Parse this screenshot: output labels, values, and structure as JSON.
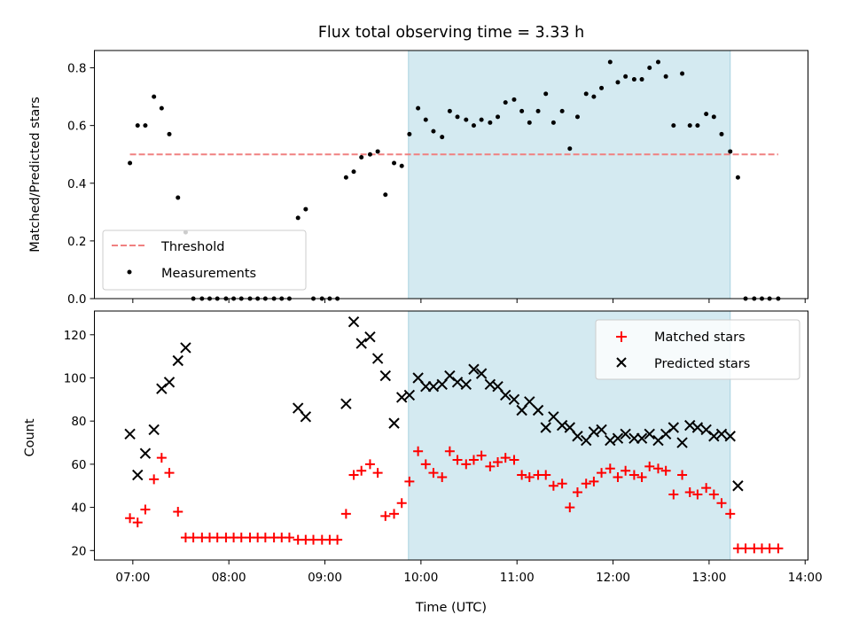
{
  "chart_data": {
    "title": "Flux total observing time = 3.33 h",
    "xlabel": "Time (UTC)",
    "x_units": "hours UTC",
    "x_ticks": [
      {
        "value": 7,
        "label": "07:00"
      },
      {
        "value": 8,
        "label": "08:00"
      },
      {
        "value": 9,
        "label": "09:00"
      },
      {
        "value": 10,
        "label": "10:00"
      },
      {
        "value": 11,
        "label": "11:00"
      },
      {
        "value": 12,
        "label": "12:00"
      },
      {
        "value": 13,
        "label": "13:00"
      },
      {
        "value": 14,
        "label": "14:00"
      }
    ],
    "xlim": [
      6.6,
      14.03
    ],
    "shaded_interval": [
      9.87,
      13.22
    ],
    "shade_color": "#d4eaf1",
    "panels": [
      {
        "type": "scatter",
        "ylabel": "Matched/Predicted stars",
        "ylim": [
          0,
          0.86
        ],
        "y_ticks": [
          {
            "value": 0.0,
            "label": "0.0"
          },
          {
            "value": 0.2,
            "label": "0.2"
          },
          {
            "value": 0.4,
            "label": "0.4"
          },
          {
            "value": 0.6,
            "label": "0.6"
          },
          {
            "value": 0.8,
            "label": "0.8"
          }
        ],
        "threshold": {
          "name": "Threshold",
          "value": 0.5,
          "x_range": [
            6.97,
            13.72
          ],
          "color": "#f08080"
        },
        "legend": {
          "placement": "lower-left",
          "entries": [
            "Threshold",
            "Measurements"
          ]
        },
        "series": [
          {
            "name": "Measurements",
            "marker": "dot",
            "color": "#000000",
            "points": [
              [
                6.97,
                0.47
              ],
              [
                7.05,
                0.6
              ],
              [
                7.13,
                0.6
              ],
              [
                7.22,
                0.7
              ],
              [
                7.3,
                0.66
              ],
              [
                7.38,
                0.57
              ],
              [
                7.47,
                0.35
              ],
              [
                7.55,
                0.23
              ],
              [
                7.63,
                0.0
              ],
              [
                7.72,
                0.0
              ],
              [
                7.8,
                0.0
              ],
              [
                7.88,
                0.0
              ],
              [
                7.97,
                0.0
              ],
              [
                8.05,
                0.0
              ],
              [
                8.13,
                0.0
              ],
              [
                8.22,
                0.0
              ],
              [
                8.3,
                0.0
              ],
              [
                8.38,
                0.0
              ],
              [
                8.47,
                0.0
              ],
              [
                8.55,
                0.0
              ],
              [
                8.63,
                0.0
              ],
              [
                8.72,
                0.28
              ],
              [
                8.8,
                0.31
              ],
              [
                8.88,
                0.0
              ],
              [
                8.97,
                0.0
              ],
              [
                9.05,
                0.0
              ],
              [
                9.13,
                0.0
              ],
              [
                9.22,
                0.42
              ],
              [
                9.3,
                0.44
              ],
              [
                9.38,
                0.49
              ],
              [
                9.47,
                0.5
              ],
              [
                9.55,
                0.51
              ],
              [
                9.63,
                0.36
              ],
              [
                9.72,
                0.47
              ],
              [
                9.8,
                0.46
              ],
              [
                9.88,
                0.57
              ],
              [
                9.97,
                0.66
              ],
              [
                10.05,
                0.62
              ],
              [
                10.13,
                0.58
              ],
              [
                10.22,
                0.56
              ],
              [
                10.3,
                0.65
              ],
              [
                10.38,
                0.63
              ],
              [
                10.47,
                0.62
              ],
              [
                10.55,
                0.6
              ],
              [
                10.63,
                0.62
              ],
              [
                10.72,
                0.61
              ],
              [
                10.8,
                0.63
              ],
              [
                10.88,
                0.68
              ],
              [
                10.97,
                0.69
              ],
              [
                11.05,
                0.65
              ],
              [
                11.13,
                0.61
              ],
              [
                11.22,
                0.65
              ],
              [
                11.3,
                0.71
              ],
              [
                11.38,
                0.61
              ],
              [
                11.47,
                0.65
              ],
              [
                11.55,
                0.52
              ],
              [
                11.63,
                0.63
              ],
              [
                11.72,
                0.71
              ],
              [
                11.8,
                0.7
              ],
              [
                11.88,
                0.73
              ],
              [
                11.97,
                0.82
              ],
              [
                12.05,
                0.75
              ],
              [
                12.13,
                0.77
              ],
              [
                12.22,
                0.76
              ],
              [
                12.3,
                0.76
              ],
              [
                12.38,
                0.8
              ],
              [
                12.47,
                0.82
              ],
              [
                12.55,
                0.77
              ],
              [
                12.63,
                0.6
              ],
              [
                12.72,
                0.78
              ],
              [
                12.8,
                0.6
              ],
              [
                12.88,
                0.6
              ],
              [
                12.97,
                0.64
              ],
              [
                13.05,
                0.63
              ],
              [
                13.13,
                0.57
              ],
              [
                13.22,
                0.51
              ],
              [
                13.3,
                0.42
              ],
              [
                13.38,
                0.0
              ],
              [
                13.47,
                0.0
              ],
              [
                13.55,
                0.0
              ],
              [
                13.63,
                0.0
              ],
              [
                13.72,
                0.0
              ]
            ]
          }
        ]
      },
      {
        "type": "scatter",
        "ylabel": "Count",
        "ylim": [
          15.6,
          131
        ],
        "y_ticks": [
          {
            "value": 20,
            "label": "20"
          },
          {
            "value": 40,
            "label": "40"
          },
          {
            "value": 60,
            "label": "60"
          },
          {
            "value": 80,
            "label": "80"
          },
          {
            "value": 100,
            "label": "100"
          },
          {
            "value": 120,
            "label": "120"
          }
        ],
        "legend": {
          "placement": "upper-right",
          "entries": [
            "Matched stars",
            "Predicted stars"
          ]
        },
        "series": [
          {
            "name": "Matched stars",
            "marker": "plus",
            "color": "#ff0000",
            "points": [
              [
                6.97,
                35
              ],
              [
                7.05,
                33
              ],
              [
                7.13,
                39
              ],
              [
                7.22,
                53
              ],
              [
                7.3,
                63
              ],
              [
                7.38,
                56
              ],
              [
                7.47,
                38
              ],
              [
                7.55,
                26
              ],
              [
                7.63,
                26
              ],
              [
                7.72,
                26
              ],
              [
                7.8,
                26
              ],
              [
                7.88,
                26
              ],
              [
                7.97,
                26
              ],
              [
                8.05,
                26
              ],
              [
                8.13,
                26
              ],
              [
                8.22,
                26
              ],
              [
                8.3,
                26
              ],
              [
                8.38,
                26
              ],
              [
                8.47,
                26
              ],
              [
                8.55,
                26
              ],
              [
                8.63,
                26
              ],
              [
                8.72,
                25
              ],
              [
                8.8,
                25
              ],
              [
                8.88,
                25
              ],
              [
                8.97,
                25
              ],
              [
                9.05,
                25
              ],
              [
                9.13,
                25
              ],
              [
                9.22,
                37
              ],
              [
                9.3,
                55
              ],
              [
                9.38,
                57
              ],
              [
                9.47,
                60
              ],
              [
                9.55,
                56
              ],
              [
                9.63,
                36
              ],
              [
                9.72,
                37
              ],
              [
                9.8,
                42
              ],
              [
                9.88,
                52
              ],
              [
                9.97,
                66
              ],
              [
                10.05,
                60
              ],
              [
                10.13,
                56
              ],
              [
                10.22,
                54
              ],
              [
                10.3,
                66
              ],
              [
                10.38,
                62
              ],
              [
                10.47,
                60
              ],
              [
                10.55,
                62
              ],
              [
                10.63,
                64
              ],
              [
                10.72,
                59
              ],
              [
                10.8,
                61
              ],
              [
                10.88,
                63
              ],
              [
                10.97,
                62
              ],
              [
                11.05,
                55
              ],
              [
                11.13,
                54
              ],
              [
                11.22,
                55
              ],
              [
                11.3,
                55
              ],
              [
                11.38,
                50
              ],
              [
                11.47,
                51
              ],
              [
                11.55,
                40
              ],
              [
                11.63,
                47
              ],
              [
                11.72,
                51
              ],
              [
                11.8,
                52
              ],
              [
                11.88,
                56
              ],
              [
                11.97,
                58
              ],
              [
                12.05,
                54
              ],
              [
                12.13,
                57
              ],
              [
                12.22,
                55
              ],
              [
                12.3,
                54
              ],
              [
                12.38,
                59
              ],
              [
                12.47,
                58
              ],
              [
                12.55,
                57
              ],
              [
                12.63,
                46
              ],
              [
                12.72,
                55
              ],
              [
                12.8,
                47
              ],
              [
                12.88,
                46
              ],
              [
                12.97,
                49
              ],
              [
                13.05,
                46
              ],
              [
                13.13,
                42
              ],
              [
                13.22,
                37
              ],
              [
                13.3,
                21
              ],
              [
                13.38,
                21
              ],
              [
                13.47,
                21
              ],
              [
                13.55,
                21
              ],
              [
                13.63,
                21
              ],
              [
                13.72,
                21
              ]
            ]
          },
          {
            "name": "Predicted stars",
            "marker": "x",
            "color": "#000000",
            "points": [
              [
                6.97,
                74
              ],
              [
                7.05,
                55
              ],
              [
                7.13,
                65
              ],
              [
                7.22,
                76
              ],
              [
                7.3,
                95
              ],
              [
                7.38,
                98
              ],
              [
                7.47,
                108
              ],
              [
                7.55,
                114
              ],
              [
                8.72,
                86
              ],
              [
                8.8,
                82
              ],
              [
                9.22,
                88
              ],
              [
                9.3,
                126
              ],
              [
                9.38,
                116
              ],
              [
                9.47,
                119
              ],
              [
                9.55,
                109
              ],
              [
                9.63,
                101
              ],
              [
                9.72,
                79
              ],
              [
                9.8,
                91
              ],
              [
                9.88,
                92
              ],
              [
                9.97,
                100
              ],
              [
                10.05,
                96
              ],
              [
                10.13,
                96
              ],
              [
                10.22,
                97
              ],
              [
                10.3,
                101
              ],
              [
                10.38,
                98
              ],
              [
                10.47,
                97
              ],
              [
                10.55,
                104
              ],
              [
                10.63,
                102
              ],
              [
                10.72,
                97
              ],
              [
                10.8,
                96
              ],
              [
                10.88,
                92
              ],
              [
                10.97,
                90
              ],
              [
                11.05,
                85
              ],
              [
                11.13,
                89
              ],
              [
                11.22,
                85
              ],
              [
                11.3,
                77
              ],
              [
                11.38,
                82
              ],
              [
                11.47,
                78
              ],
              [
                11.55,
                77
              ],
              [
                11.63,
                73
              ],
              [
                11.72,
                71
              ],
              [
                11.8,
                75
              ],
              [
                11.88,
                76
              ],
              [
                11.97,
                71
              ],
              [
                12.05,
                72
              ],
              [
                12.13,
                74
              ],
              [
                12.22,
                72
              ],
              [
                12.3,
                72
              ],
              [
                12.38,
                74
              ],
              [
                12.47,
                71
              ],
              [
                12.55,
                74
              ],
              [
                12.63,
                77
              ],
              [
                12.72,
                70
              ],
              [
                12.8,
                78
              ],
              [
                12.88,
                77
              ],
              [
                12.97,
                76
              ],
              [
                13.05,
                73
              ],
              [
                13.13,
                74
              ],
              [
                13.22,
                73
              ],
              [
                13.3,
                50
              ]
            ]
          }
        ]
      }
    ]
  }
}
